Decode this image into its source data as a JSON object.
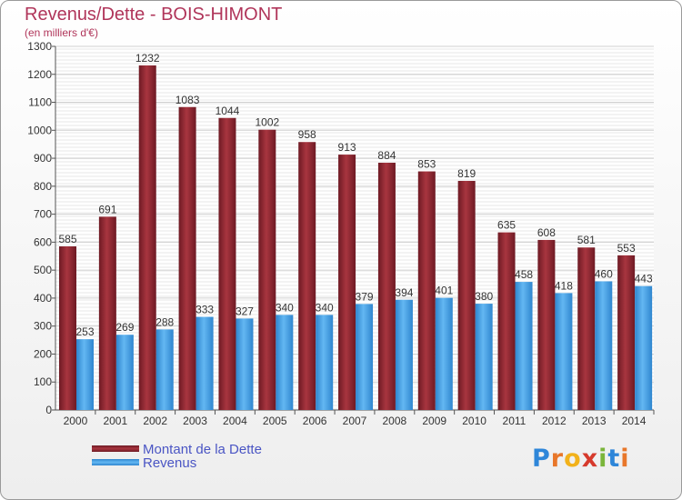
{
  "chart_data": {
    "type": "bar",
    "title": "Revenus/Dette - BOIS-HIMONT",
    "subtitle": "(en milliers d'€)",
    "categories": [
      "2000",
      "2001",
      "2002",
      "2003",
      "2004",
      "2005",
      "2006",
      "2007",
      "2008",
      "2009",
      "2010",
      "2011",
      "2012",
      "2013",
      "2014"
    ],
    "series": [
      {
        "name": "Montant de la Dette",
        "values": [
          585,
          691,
          1232,
          1083,
          1044,
          1002,
          958,
          913,
          884,
          853,
          819,
          635,
          608,
          581,
          553
        ],
        "color": "#8e2430"
      },
      {
        "name": "Revenus",
        "values": [
          253,
          269,
          288,
          333,
          327,
          340,
          340,
          379,
          394,
          401,
          380,
          458,
          418,
          460,
          443
        ],
        "color": "#4aa3e6"
      }
    ],
    "ylim": [
      0,
      1300
    ],
    "yticks": [
      0,
      100,
      200,
      300,
      400,
      500,
      600,
      700,
      800,
      900,
      1000,
      1100,
      1200,
      1300
    ],
    "grid": true,
    "legend_position": "bottom-left"
  },
  "logo": {
    "letters": [
      "P",
      "r",
      "o",
      "x",
      "i",
      "t",
      "i"
    ],
    "colors": [
      "#2e86d9",
      "#e8772a",
      "#f2b21b",
      "#d63a2c",
      "#7ab53a",
      "#2e86d9",
      "#e8772a"
    ]
  }
}
